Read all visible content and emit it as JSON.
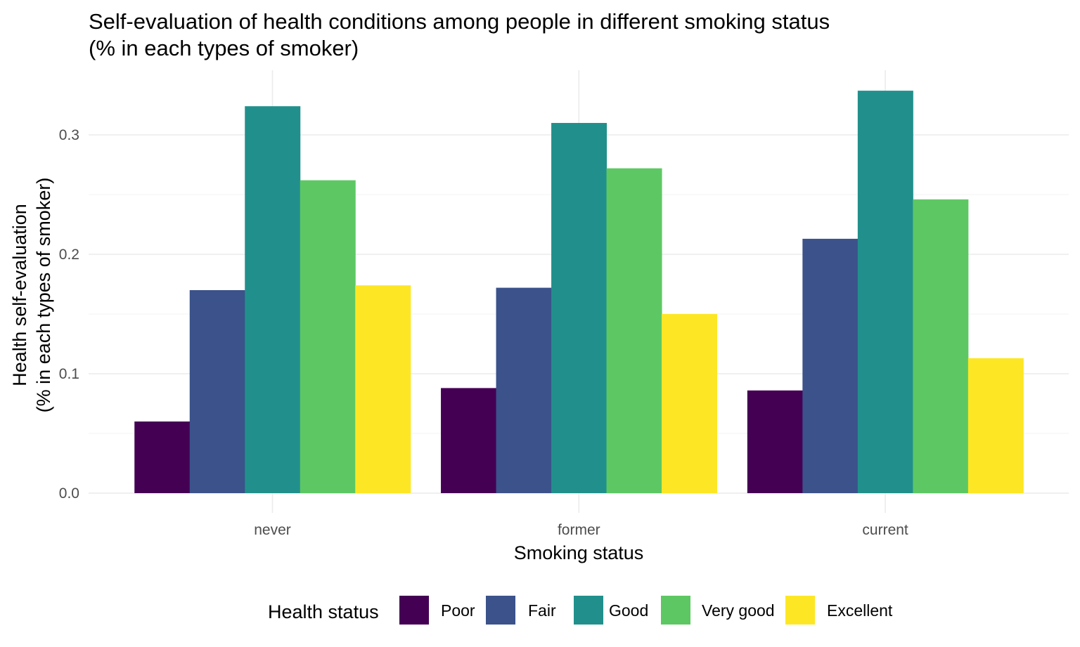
{
  "chart_data": {
    "type": "bar",
    "title": "Self-evaluation of health conditions among people in different smoking status",
    "subtitle": "(% in each types of smoker)",
    "xlabel": "Smoking status",
    "ylabel": "Health self-evaluation",
    "ylabel2": "(% in each types of smoker)",
    "categories": [
      "never",
      "former",
      "current"
    ],
    "ylim": [
      0,
      0.35
    ],
    "yticks": [
      0.0,
      0.1,
      0.2,
      0.3
    ],
    "ytick_labels": [
      "0.0",
      "0.1",
      "0.2",
      "0.3"
    ],
    "grid": true,
    "legend": {
      "title": "Health status",
      "position": "bottom"
    },
    "series": [
      {
        "name": "Poor",
        "color": "#440154",
        "values": [
          0.06,
          0.088,
          0.086
        ]
      },
      {
        "name": "Fair",
        "color": "#3B528B",
        "values": [
          0.17,
          0.172,
          0.213
        ]
      },
      {
        "name": "Good",
        "color": "#21908C",
        "values": [
          0.324,
          0.31,
          0.337
        ]
      },
      {
        "name": "Very good",
        "color": "#5DC863",
        "values": [
          0.262,
          0.272,
          0.246
        ]
      },
      {
        "name": "Excellent",
        "color": "#FDE725",
        "values": [
          0.174,
          0.15,
          0.113
        ]
      }
    ]
  }
}
